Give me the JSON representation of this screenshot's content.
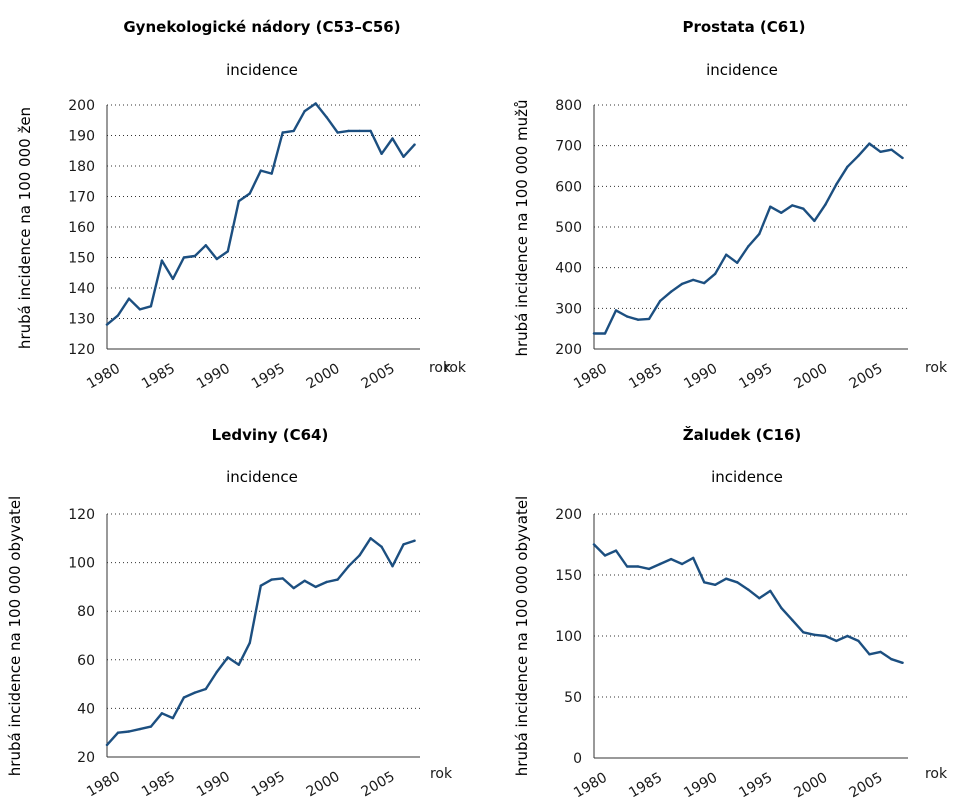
{
  "chart_data": [
    {
      "type": "line",
      "title": "Gynekologické nádory (C53–C56)",
      "subtitle": "incidence",
      "ylabel": "hrubá incidence na  100 000 žen",
      "xlabel": "rok",
      "xlabel_extra": "rok",
      "ylim": [
        120,
        200
      ],
      "yticks": [
        120,
        130,
        140,
        150,
        160,
        170,
        180,
        190,
        200
      ],
      "xticks": [
        1980,
        1985,
        1990,
        1995,
        2000,
        2005
      ],
      "xlim": [
        1980,
        2008.5
      ],
      "x": [
        1980,
        1981,
        1982,
        1983,
        1984,
        1985,
        1986,
        1987,
        1988,
        1989,
        1990,
        1991,
        1992,
        1993,
        1994,
        1995,
        1996,
        1997,
        1998,
        1999,
        2000,
        2001,
        2002,
        2003,
        2004,
        2005,
        2006,
        2007,
        2008
      ],
      "values": [
        128,
        131,
        136.5,
        133,
        134,
        149,
        143,
        150,
        150.5,
        154,
        149.5,
        152,
        168.5,
        171,
        178.5,
        177.5,
        191,
        191.5,
        198,
        200.5,
        196,
        191,
        191.5,
        191.5,
        191.5,
        184,
        189,
        183,
        187
      ]
    },
    {
      "type": "line",
      "title": "Prostata (C61)",
      "subtitle": "incidence",
      "ylabel": "hrubá incidence na  100 000 mužů",
      "xlabel": "rok",
      "ylim": [
        200,
        800
      ],
      "yticks": [
        200,
        300,
        400,
        500,
        600,
        700,
        800
      ],
      "xticks": [
        1980,
        1985,
        1990,
        1995,
        2000,
        2005
      ],
      "xlim": [
        1980,
        2008.5
      ],
      "x": [
        1980,
        1981,
        1982,
        1983,
        1984,
        1985,
        1986,
        1987,
        1988,
        1989,
        1990,
        1991,
        1992,
        1993,
        1994,
        1995,
        1996,
        1997,
        1998,
        1999,
        2000,
        2001,
        2002,
        2003,
        2004,
        2005,
        2006,
        2007,
        2008
      ],
      "values": [
        238,
        238,
        295,
        280,
        272,
        274,
        318,
        341,
        360,
        370,
        362,
        385,
        432,
        412,
        452,
        483,
        550,
        535,
        553,
        545,
        515,
        555,
        605,
        648,
        675,
        705,
        685,
        690,
        670
      ]
    },
    {
      "type": "line",
      "title": "Ledviny (C64)",
      "subtitle": "incidence",
      "ylabel": "hrubá incidence na  100 000 obyvatel",
      "xlabel": "rok",
      "ylim": [
        20,
        120
      ],
      "yticks": [
        20,
        40,
        60,
        80,
        100,
        120
      ],
      "xticks": [
        1980,
        1985,
        1990,
        1995,
        2000,
        2005
      ],
      "xlim": [
        1980,
        2008.5
      ],
      "x": [
        1980,
        1981,
        1982,
        1983,
        1984,
        1985,
        1986,
        1987,
        1988,
        1989,
        1990,
        1991,
        1992,
        1993,
        1994,
        1995,
        1996,
        1997,
        1998,
        1999,
        2000,
        2001,
        2002,
        2003,
        2004,
        2005,
        2006,
        2007,
        2008
      ],
      "values": [
        25,
        30,
        30.5,
        31.5,
        32.5,
        38,
        36,
        44.5,
        46.5,
        48,
        55,
        61,
        58,
        67,
        90.5,
        93,
        93.5,
        89.5,
        92.5,
        90,
        92,
        93,
        98.5,
        103,
        110,
        106.5,
        98.5,
        107.5,
        109
      ]
    },
    {
      "type": "line",
      "title": "Žaludek (C16)",
      "subtitle": "incidence",
      "ylabel": "hrubá incidence na  100 000 obyvatel",
      "xlabel": "rok",
      "ylim": [
        0,
        200
      ],
      "yticks": [
        0,
        50,
        100,
        150,
        200
      ],
      "xticks": [
        1980,
        1985,
        1990,
        1995,
        2000,
        2005
      ],
      "xlim": [
        1980,
        2008.5
      ],
      "x": [
        1980,
        1981,
        1982,
        1983,
        1984,
        1985,
        1986,
        1987,
        1988,
        1989,
        1990,
        1991,
        1992,
        1993,
        1994,
        1995,
        1996,
        1997,
        1998,
        1999,
        2000,
        2001,
        2002,
        2003,
        2004,
        2005,
        2006,
        2007,
        2008
      ],
      "values": [
        175,
        166,
        170,
        157,
        157,
        155,
        159,
        163,
        159,
        164,
        144,
        142,
        147,
        144,
        138,
        131,
        137,
        123,
        113,
        103,
        101,
        100,
        96,
        100,
        96,
        85,
        87,
        81,
        78
      ]
    }
  ],
  "colors": {
    "series": "#1c4f80",
    "grid": "#333333",
    "text": "#1a1a1a"
  }
}
